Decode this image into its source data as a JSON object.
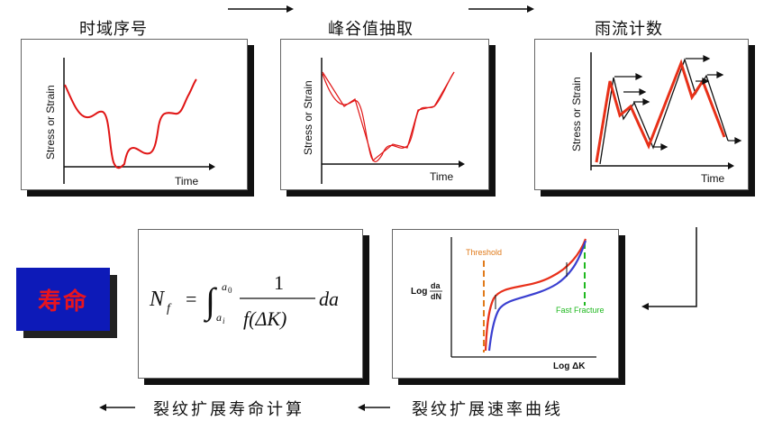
{
  "top_flow": {
    "steps": [
      {
        "title": "时域序号",
        "x_axis": "Time",
        "y_axis": "Stress or Strain"
      },
      {
        "title": "峰谷值抽取",
        "x_axis": "Time",
        "y_axis": "Stress or Strain"
      },
      {
        "title": "雨流计数",
        "x_axis": "Time",
        "y_axis": "Stress or Strain"
      }
    ]
  },
  "formula_panel": {
    "lhs_symbol": "N",
    "lhs_subscript": "f",
    "equals": "=",
    "upper_limit": "a",
    "upper_limit_sub": "0",
    "lower_limit": "a",
    "lower_limit_sub": "i",
    "numerator": "1",
    "denominator": "f(ΔK)",
    "differential": "da"
  },
  "crack_panel": {
    "threshold_label": "Threshold",
    "fast_fracture_label": "Fast Fracture",
    "y_label_prefix": "Log",
    "y_label_num": "da",
    "y_label_den": "dN",
    "x_label": "Log ΔK",
    "colors": {
      "threshold": "#e07a1a",
      "fast_fracture": "#1fb81f",
      "curve_red": "#e8301a",
      "curve_blue": "#3a3fd0"
    }
  },
  "life_box": {
    "label": "寿命",
    "bg_color": "#0d1ab8",
    "text_color": "#e8141e"
  },
  "bottom_captions": {
    "left": "裂纹扩展寿命计算",
    "right": "裂纹扩展速率曲线"
  },
  "colors": {
    "signal_red": "#e01515",
    "rainflow_arrow": "#111111"
  }
}
